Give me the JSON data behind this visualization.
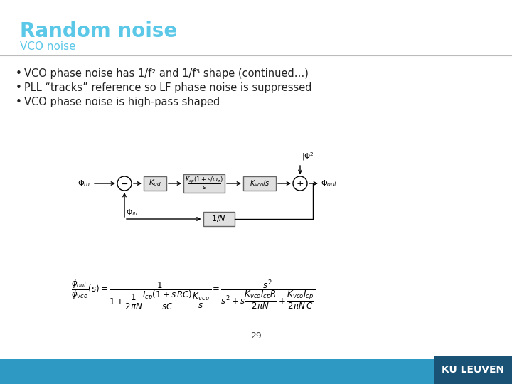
{
  "title": "Random noise",
  "subtitle": "VCO noise",
  "title_color": "#5bc8e8",
  "subtitle_color": "#5bc8e8",
  "bullet_points": [
    "VCO phase noise has 1/f² and 1/f³ shape (continued…)",
    "PLL “tracks” reference so LF phase noise is suppressed",
    "VCO phase noise is high-pass shaped"
  ],
  "bullet_color": "#222222",
  "page_number": "29",
  "footer_color": "#2e9ac4",
  "ku_leuven_bg": "#1a5276",
  "ku_leuven_text": "KU LEUVEN",
  "background_color": "#ffffff"
}
